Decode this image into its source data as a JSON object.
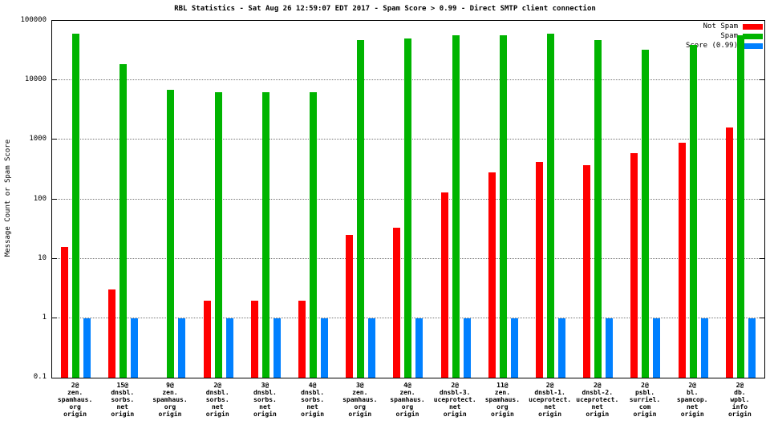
{
  "title": "RBL Statistics - Sat Aug 26 12:59:07 EDT 2017 - Spam Score > 0.99 - Direct SMTP client connection",
  "ylabel": "Message Count or Spam Score",
  "legend": [
    {
      "label": "Not Spam",
      "color": "#ff0000"
    },
    {
      "label": "Spam",
      "color": "#00b400"
    },
    {
      "label": "Score (0.99)",
      "color": "#0080ff"
    }
  ],
  "chart_data": {
    "type": "bar",
    "y_scale": "log",
    "ylim": [
      0.1,
      100000
    ],
    "y_ticks": [
      0.1,
      1,
      10,
      100,
      1000,
      10000,
      100000
    ],
    "y_tick_labels": [
      "0.1",
      "1",
      "10",
      "100",
      "1000",
      "10000",
      "100000"
    ],
    "grid": "horizontal-dotted",
    "legend_position": "top-right",
    "title": "RBL Statistics - Sat Aug 26 12:59:07 EDT 2017 - Spam Score > 0.99 - Direct SMTP client connection",
    "ylabel": "Message Count or Spam Score",
    "categories": [
      [
        "2@",
        "zen.",
        "spamhaus.",
        "org",
        "origin"
      ],
      [
        "15@",
        "dnsbl.",
        "sorbs.",
        "net",
        "origin"
      ],
      [
        "9@",
        "zen.",
        "spamhaus.",
        "org",
        "origin"
      ],
      [
        "2@",
        "dnsbl.",
        "sorbs.",
        "net",
        "origin"
      ],
      [
        "3@",
        "dnsbl.",
        "sorbs.",
        "net",
        "origin"
      ],
      [
        "4@",
        "dnsbl.",
        "sorbs.",
        "net",
        "origin"
      ],
      [
        "3@",
        "zen.",
        "spamhaus.",
        "org",
        "origin"
      ],
      [
        "4@",
        "zen.",
        "spamhaus.",
        "org",
        "origin"
      ],
      [
        "2@",
        "dnsbl-3.",
        "uceprotect.",
        "net",
        "origin"
      ],
      [
        "11@",
        "zen.",
        "spamhaus.",
        "org",
        "origin"
      ],
      [
        "2@",
        "dnsbl-1.",
        "uceprotect.",
        "net",
        "origin"
      ],
      [
        "2@",
        "dnsbl-2.",
        "uceprotect.",
        "net",
        "origin"
      ],
      [
        "2@",
        "psbl.",
        "surriel.",
        "com",
        "origin"
      ],
      [
        "2@",
        "bl.",
        "spamcop.",
        "net",
        "origin"
      ],
      [
        "2@",
        "db.",
        "wpbl.",
        "info",
        "origin"
      ]
    ],
    "series": [
      {
        "name": "Not Spam",
        "color": "#ff0000",
        "values": [
          16,
          3,
          0,
          2,
          2,
          2,
          25,
          33,
          130,
          280,
          430,
          370,
          600,
          900,
          1600
        ]
      },
      {
        "name": "Spam",
        "color": "#00b400",
        "values": [
          60000,
          19000,
          7000,
          6300,
          6300,
          6300,
          47000,
          50000,
          57000,
          57000,
          60000,
          48000,
          33000,
          40000,
          58000
        ]
      },
      {
        "name": "Score (0.99)",
        "color": "#0080ff",
        "values": [
          1,
          1,
          1,
          1,
          1,
          1,
          1,
          1,
          1,
          1,
          1,
          1,
          1,
          1,
          1
        ]
      }
    ]
  }
}
